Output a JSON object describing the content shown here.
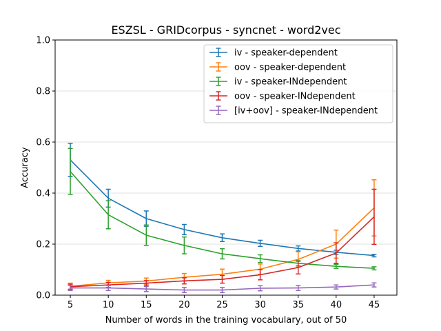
{
  "chart_data": {
    "type": "line",
    "title": "ESZSL - GRIDcorpus - syncnet - word2vec",
    "xlabel": "Number of words in the training vocabulary, out of 50",
    "ylabel": "Accuracy",
    "x": [
      5,
      10,
      15,
      20,
      25,
      30,
      35,
      40,
      45
    ],
    "x_ticks": [
      "5",
      "10",
      "15",
      "20",
      "25",
      "30",
      "35",
      "40",
      "45"
    ],
    "xlim": [
      3,
      48
    ],
    "ylim": [
      0,
      1
    ],
    "y_ticks": [
      "0.0",
      "0.2",
      "0.4",
      "0.6",
      "0.8",
      "1.0"
    ],
    "grid": "horizontal",
    "legend_position": "top-right",
    "series": [
      {
        "name": "iv - speaker-dependent",
        "color": "#1f77b4",
        "values": [
          0.53,
          0.38,
          0.3,
          0.257,
          0.225,
          0.203,
          0.183,
          0.168,
          0.155
        ],
        "errors": [
          0.065,
          0.035,
          0.03,
          0.02,
          0.015,
          0.012,
          0.01,
          0.008,
          0.005
        ]
      },
      {
        "name": "oov - speaker-dependent",
        "color": "#ff7f0e",
        "values": [
          0.035,
          0.048,
          0.055,
          0.07,
          0.082,
          0.102,
          0.14,
          0.2,
          0.342
        ],
        "errors": [
          0.012,
          0.01,
          0.012,
          0.015,
          0.02,
          0.02,
          0.03,
          0.055,
          0.11
        ]
      },
      {
        "name": "iv - speaker-INdependent",
        "color": "#2ca02c",
        "values": [
          0.485,
          0.315,
          0.235,
          0.195,
          0.162,
          0.143,
          0.125,
          0.113,
          0.105
        ],
        "errors": [
          0.09,
          0.055,
          0.04,
          0.033,
          0.02,
          0.015,
          0.01,
          0.008,
          0.006
        ]
      },
      {
        "name": "oov - speaker-INdependent",
        "color": "#d62728",
        "values": [
          0.033,
          0.04,
          0.047,
          0.056,
          0.062,
          0.08,
          0.108,
          0.165,
          0.307
        ],
        "errors": [
          0.01,
          0.01,
          0.01,
          0.012,
          0.015,
          0.02,
          0.025,
          0.04,
          0.108
        ]
      },
      {
        "name": "[iv+oov] - speaker-INdependent",
        "color": "#9467bd",
        "values": [
          0.028,
          0.028,
          0.024,
          0.02,
          0.02,
          0.027,
          0.028,
          0.032,
          0.04
        ],
        "errors": [
          0.01,
          0.01,
          0.01,
          0.01,
          0.01,
          0.01,
          0.01,
          0.008,
          0.008
        ]
      }
    ]
  }
}
